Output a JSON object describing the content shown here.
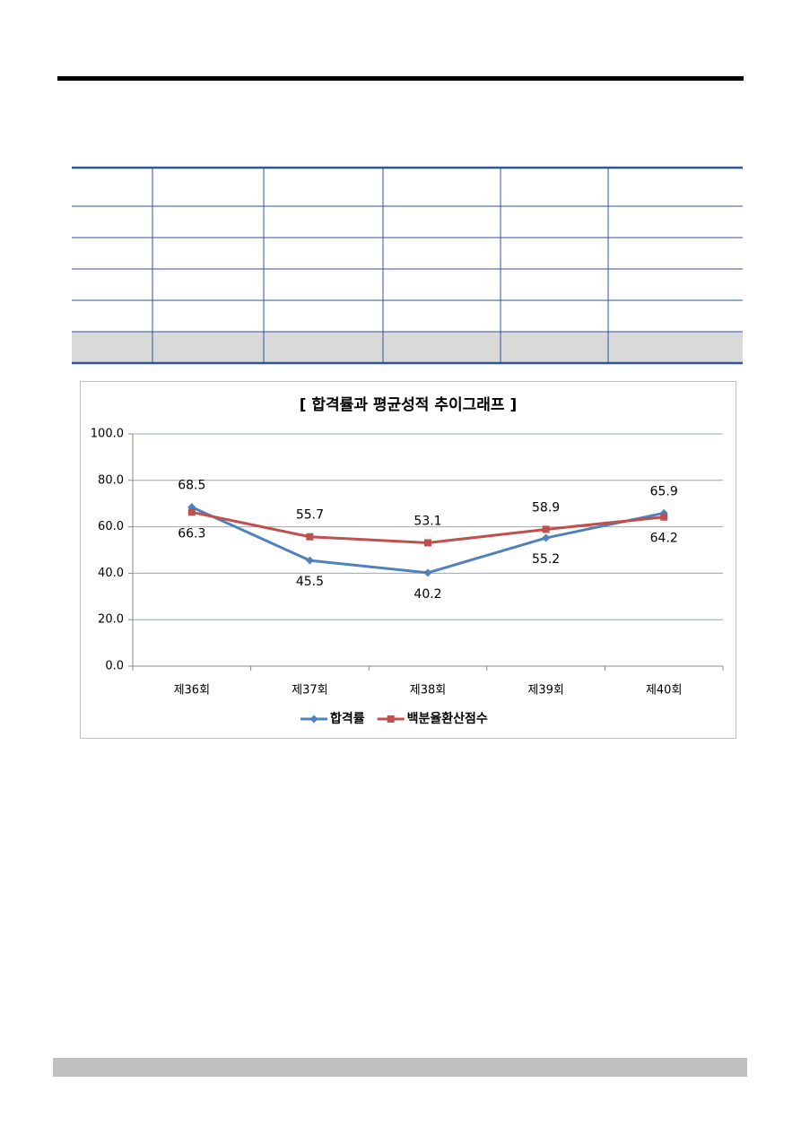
{
  "chart_data": {
    "type": "line",
    "title": "[ 합격률과 평균성적 추이그래프 ]",
    "categories": [
      "제36회",
      "제37회",
      "제38회",
      "제39회",
      "제40회"
    ],
    "series": [
      {
        "name": "합격률",
        "color": "#4f81bd",
        "marker": "diamond",
        "values": [
          68.5,
          45.5,
          40.2,
          55.2,
          65.9
        ]
      },
      {
        "name": "백분율환산점수",
        "color": "#c0504d",
        "marker": "square",
        "values": [
          66.3,
          55.7,
          53.1,
          58.9,
          64.2
        ]
      }
    ],
    "ylim": [
      0,
      100
    ],
    "yticks": [
      {
        "value": 0,
        "label": "0.0"
      },
      {
        "value": 20,
        "label": "20.0"
      },
      {
        "value": 40,
        "label": "40.0"
      },
      {
        "value": 60,
        "label": "60.0"
      },
      {
        "value": 80,
        "label": "80.0"
      },
      {
        "value": 100,
        "label": "100.0"
      }
    ],
    "grid": true,
    "legend": "bottom"
  }
}
